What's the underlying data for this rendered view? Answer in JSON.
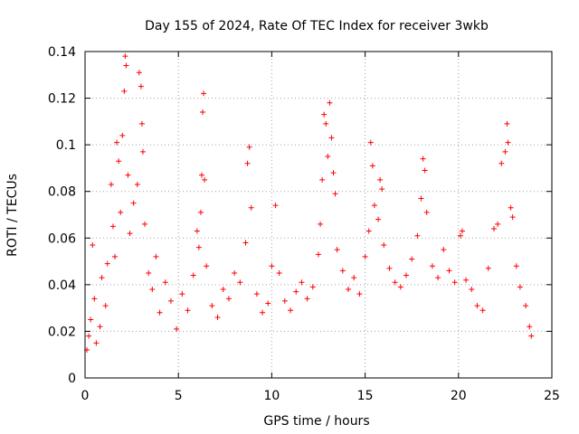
{
  "chart_data": {
    "type": "scatter",
    "title": "Day 155 of 2024, Rate Of TEC Index for receiver 3wkb",
    "xlabel": "GPS time / hours",
    "ylabel": "ROTI / TECUs",
    "xlim": [
      0,
      25
    ],
    "ylim": [
      0,
      0.14
    ],
    "xticks": [
      0,
      5,
      10,
      15,
      20,
      25
    ],
    "xtick_labels": [
      "0",
      "5",
      "10",
      "15",
      "20",
      "25"
    ],
    "yticks": [
      0,
      0.02,
      0.04,
      0.06,
      0.08,
      0.1,
      0.12,
      0.14
    ],
    "ytick_labels": [
      "0",
      "0.02",
      "0.04",
      "0.06",
      "0.08",
      "0.1",
      "0.12",
      "0.14"
    ],
    "grid": true,
    "marker": "+",
    "color": "#ff0000",
    "series": [
      {
        "name": "ROTI",
        "points": [
          [
            0.1,
            0.012
          ],
          [
            0.2,
            0.018
          ],
          [
            0.3,
            0.025
          ],
          [
            0.4,
            0.057
          ],
          [
            0.5,
            0.034
          ],
          [
            0.6,
            0.015
          ],
          [
            0.8,
            0.022
          ],
          [
            0.9,
            0.043
          ],
          [
            1.1,
            0.031
          ],
          [
            1.2,
            0.049
          ],
          [
            1.4,
            0.083
          ],
          [
            1.5,
            0.065
          ],
          [
            1.6,
            0.052
          ],
          [
            1.7,
            0.101
          ],
          [
            1.8,
            0.093
          ],
          [
            1.9,
            0.071
          ],
          [
            2.0,
            0.104
          ],
          [
            2.1,
            0.123
          ],
          [
            2.15,
            0.138
          ],
          [
            2.2,
            0.134
          ],
          [
            2.3,
            0.087
          ],
          [
            2.4,
            0.062
          ],
          [
            2.6,
            0.075
          ],
          [
            2.8,
            0.083
          ],
          [
            2.9,
            0.131
          ],
          [
            3.0,
            0.125
          ],
          [
            3.05,
            0.109
          ],
          [
            3.1,
            0.097
          ],
          [
            3.2,
            0.066
          ],
          [
            3.4,
            0.045
          ],
          [
            3.6,
            0.038
          ],
          [
            3.8,
            0.052
          ],
          [
            4.0,
            0.028
          ],
          [
            4.3,
            0.041
          ],
          [
            4.6,
            0.033
          ],
          [
            4.9,
            0.021
          ],
          [
            5.2,
            0.036
          ],
          [
            5.5,
            0.029
          ],
          [
            5.8,
            0.044
          ],
          [
            6.0,
            0.063
          ],
          [
            6.1,
            0.056
          ],
          [
            6.2,
            0.071
          ],
          [
            6.25,
            0.087
          ],
          [
            6.3,
            0.114
          ],
          [
            6.35,
            0.122
          ],
          [
            6.4,
            0.085
          ],
          [
            6.5,
            0.048
          ],
          [
            6.8,
            0.031
          ],
          [
            7.1,
            0.026
          ],
          [
            7.4,
            0.038
          ],
          [
            7.7,
            0.034
          ],
          [
            8.0,
            0.045
          ],
          [
            8.3,
            0.041
          ],
          [
            8.6,
            0.058
          ],
          [
            8.7,
            0.092
          ],
          [
            8.8,
            0.099
          ],
          [
            8.9,
            0.073
          ],
          [
            9.2,
            0.036
          ],
          [
            9.5,
            0.028
          ],
          [
            9.8,
            0.032
          ],
          [
            10.0,
            0.048
          ],
          [
            10.2,
            0.074
          ],
          [
            10.4,
            0.045
          ],
          [
            10.7,
            0.033
          ],
          [
            11.0,
            0.029
          ],
          [
            11.3,
            0.037
          ],
          [
            11.6,
            0.041
          ],
          [
            11.9,
            0.034
          ],
          [
            12.2,
            0.039
          ],
          [
            12.5,
            0.053
          ],
          [
            12.6,
            0.066
          ],
          [
            12.7,
            0.085
          ],
          [
            12.8,
            0.113
          ],
          [
            12.9,
            0.109
          ],
          [
            13.0,
            0.095
          ],
          [
            13.1,
            0.118
          ],
          [
            13.2,
            0.103
          ],
          [
            13.3,
            0.088
          ],
          [
            13.4,
            0.079
          ],
          [
            13.5,
            0.055
          ],
          [
            13.8,
            0.046
          ],
          [
            14.1,
            0.038
          ],
          [
            14.4,
            0.043
          ],
          [
            14.7,
            0.036
          ],
          [
            15.0,
            0.052
          ],
          [
            15.2,
            0.063
          ],
          [
            15.3,
            0.101
          ],
          [
            15.4,
            0.091
          ],
          [
            15.5,
            0.074
          ],
          [
            15.7,
            0.068
          ],
          [
            15.8,
            0.085
          ],
          [
            15.9,
            0.081
          ],
          [
            16.0,
            0.057
          ],
          [
            16.3,
            0.047
          ],
          [
            16.6,
            0.041
          ],
          [
            16.9,
            0.039
          ],
          [
            17.2,
            0.044
          ],
          [
            17.5,
            0.051
          ],
          [
            17.8,
            0.061
          ],
          [
            18.0,
            0.077
          ],
          [
            18.1,
            0.094
          ],
          [
            18.2,
            0.089
          ],
          [
            18.3,
            0.071
          ],
          [
            18.6,
            0.048
          ],
          [
            18.9,
            0.043
          ],
          [
            19.2,
            0.055
          ],
          [
            19.5,
            0.046
          ],
          [
            19.8,
            0.041
          ],
          [
            20.1,
            0.061
          ],
          [
            20.2,
            0.063
          ],
          [
            20.4,
            0.042
          ],
          [
            20.7,
            0.038
          ],
          [
            21.0,
            0.031
          ],
          [
            21.3,
            0.029
          ],
          [
            21.6,
            0.047
          ],
          [
            21.9,
            0.064
          ],
          [
            22.1,
            0.066
          ],
          [
            22.3,
            0.092
          ],
          [
            22.5,
            0.097
          ],
          [
            22.6,
            0.109
          ],
          [
            22.65,
            0.101
          ],
          [
            22.8,
            0.073
          ],
          [
            22.9,
            0.069
          ],
          [
            23.1,
            0.048
          ],
          [
            23.3,
            0.039
          ],
          [
            23.6,
            0.031
          ],
          [
            23.8,
            0.022
          ],
          [
            23.9,
            0.018
          ]
        ]
      }
    ]
  }
}
